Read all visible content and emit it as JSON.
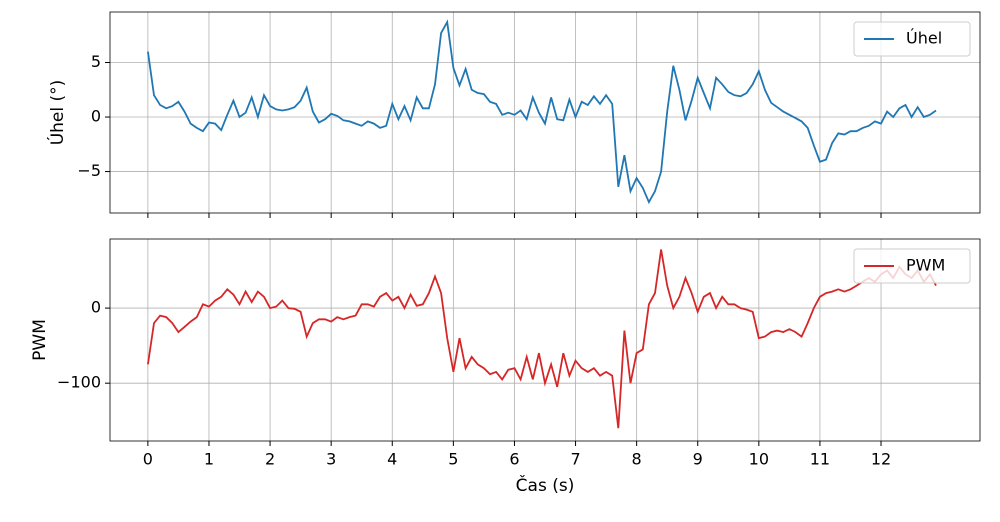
{
  "chart_data": [
    {
      "type": "line",
      "ylabel": "Úhel (°)",
      "x": [
        0,
        0.1,
        0.2,
        0.3,
        0.4,
        0.5,
        0.6,
        0.7,
        0.8,
        0.9,
        1,
        1.1,
        1.2,
        1.3,
        1.4,
        1.5,
        1.6,
        1.7,
        1.8,
        1.9,
        2,
        2.1,
        2.2,
        2.3,
        2.4,
        2.5,
        2.6,
        2.7,
        2.8,
        2.9,
        3,
        3.1,
        3.2,
        3.3,
        3.4,
        3.5,
        3.6,
        3.7,
        3.8,
        3.9,
        4,
        4.1,
        4.2,
        4.3,
        4.4,
        4.5,
        4.6,
        4.7,
        4.8,
        4.9,
        5,
        5.1,
        5.2,
        5.3,
        5.4,
        5.5,
        5.6,
        5.7,
        5.8,
        5.9,
        6,
        6.1,
        6.2,
        6.3,
        6.4,
        6.5,
        6.6,
        6.7,
        6.8,
        6.9,
        7,
        7.1,
        7.2,
        7.3,
        7.4,
        7.5,
        7.6,
        7.7,
        7.8,
        7.9,
        8,
        8.1,
        8.2,
        8.3,
        8.4,
        8.5,
        8.6,
        8.7,
        8.8,
        8.9,
        9,
        9.1,
        9.2,
        9.3,
        9.4,
        9.5,
        9.6,
        9.7,
        9.8,
        9.9,
        10,
        10.1,
        10.2,
        10.3,
        10.4,
        10.5,
        10.6,
        10.7,
        10.8,
        10.9,
        11,
        11.1,
        11.2,
        11.3,
        11.4,
        11.5,
        11.6,
        11.7,
        11.8,
        11.9,
        12,
        12.1,
        12.2,
        12.3,
        12.4,
        12.5,
        12.6,
        12.7,
        12.8,
        12.9
      ],
      "series": [
        {
          "name": "Úhel",
          "color": "#1f77b4",
          "values": [
            6.0,
            2.0,
            1.1,
            0.8,
            1.0,
            1.4,
            0.5,
            -0.6,
            -1.0,
            -1.3,
            -0.5,
            -0.6,
            -1.2,
            0.2,
            1.5,
            0,
            0.4,
            1.8,
            0,
            2.0,
            1.0,
            0.7,
            0.6,
            0.7,
            0.9,
            1.5,
            2.7,
            0.5,
            -0.5,
            -0.2,
            0.3,
            0.1,
            -0.3,
            -0.4,
            -0.6,
            -0.8,
            -0.4,
            -0.6,
            -1.0,
            -0.8,
            1.2,
            -0.2,
            1.0,
            -0.3,
            1.8,
            0.8,
            0.8,
            3.0,
            7.7,
            8.7,
            4.5,
            2.9,
            4.4,
            2.5,
            2.2,
            2.1,
            1.4,
            1.2,
            0.2,
            0.4,
            0.2,
            0.6,
            -0.2,
            1.8,
            0.4,
            -0.6,
            1.8,
            -0.2,
            -0.3,
            1.6,
            0,
            1.4,
            1.1,
            1.9,
            1.2,
            2.0,
            1.2,
            -6.4,
            -3.5,
            -6.8,
            -5.6,
            -6.5,
            -7.8,
            -6.8,
            -5.0,
            0.5,
            4.7,
            2.5,
            -0.3,
            1.5,
            3.6,
            2.2,
            0.8,
            3.6,
            3.0,
            2.3,
            2.0,
            1.9,
            2.2,
            3.0,
            4.2,
            2.5,
            1.3,
            0.9,
            0.5,
            0.2,
            -0.1,
            -0.4,
            -1.0,
            -2.6,
            -4.1,
            -3.9,
            -2.4,
            -1.5,
            -1.6,
            -1.3,
            -1.3,
            -1.0,
            -0.8,
            -0.4,
            -0.6,
            0.5,
            0,
            0.8,
            1.1,
            0,
            0.9,
            0,
            0.2,
            0.6
          ]
        }
      ],
      "xlim": [
        -0.62,
        13.62
      ],
      "ylim": [
        -8.8,
        9.63
      ],
      "xticks": [
        0,
        1,
        2,
        3,
        4,
        5,
        6,
        7,
        8,
        9,
        10,
        11,
        12
      ],
      "yticks": [
        {
          "value": -5,
          "label": "−5"
        },
        0,
        5
      ],
      "grid": true,
      "legend": "upper right"
    },
    {
      "type": "line",
      "ylabel": "PWM",
      "xlabel": "Čas (s)",
      "x": [
        0,
        0.1,
        0.2,
        0.3,
        0.4,
        0.5,
        0.6,
        0.7,
        0.8,
        0.9,
        1,
        1.1,
        1.2,
        1.3,
        1.4,
        1.5,
        1.6,
        1.7,
        1.8,
        1.9,
        2,
        2.1,
        2.2,
        2.3,
        2.4,
        2.5,
        2.6,
        2.7,
        2.8,
        2.9,
        3,
        3.1,
        3.2,
        3.3,
        3.4,
        3.5,
        3.6,
        3.7,
        3.8,
        3.9,
        4,
        4.1,
        4.2,
        4.3,
        4.4,
        4.5,
        4.6,
        4.7,
        4.8,
        4.9,
        5,
        5.1,
        5.2,
        5.3,
        5.4,
        5.5,
        5.6,
        5.7,
        5.8,
        5.9,
        6,
        6.1,
        6.2,
        6.3,
        6.4,
        6.5,
        6.6,
        6.7,
        6.8,
        6.9,
        7,
        7.1,
        7.2,
        7.3,
        7.4,
        7.5,
        7.6,
        7.7,
        7.8,
        7.9,
        8,
        8.1,
        8.2,
        8.3,
        8.4,
        8.5,
        8.6,
        8.7,
        8.8,
        8.9,
        9,
        9.1,
        9.2,
        9.3,
        9.4,
        9.5,
        9.6,
        9.7,
        9.8,
        9.9,
        10,
        10.1,
        10.2,
        10.3,
        10.4,
        10.5,
        10.6,
        10.7,
        10.8,
        10.9,
        11,
        11.1,
        11.2,
        11.3,
        11.4,
        11.5,
        11.6,
        11.7,
        11.8,
        11.9,
        12,
        12.1,
        12.2,
        12.3,
        12.4,
        12.5,
        12.6,
        12.7,
        12.8,
        12.9
      ],
      "series": [
        {
          "name": "PWM",
          "color": "#d62728",
          "values": [
            -75,
            -20,
            -10,
            -12,
            -20,
            -32,
            -25,
            -18,
            -12,
            5,
            2,
            10,
            15,
            25,
            18,
            5,
            22,
            8,
            22,
            15,
            0,
            2,
            10,
            0,
            -1,
            -5,
            -38,
            -20,
            -15,
            -15,
            -18,
            -12,
            -15,
            -12,
            -10,
            5,
            5,
            2,
            15,
            20,
            10,
            15,
            0,
            18,
            3,
            5,
            20,
            42,
            20,
            -40,
            -85,
            -40,
            -80,
            -65,
            -75,
            -80,
            -88,
            -85,
            -95,
            -82,
            -80,
            -95,
            -65,
            -95,
            -60,
            -100,
            -75,
            -105,
            -60,
            -90,
            -70,
            -80,
            -85,
            -80,
            -90,
            -85,
            -90,
            -160,
            -30,
            -100,
            -60,
            -55,
            5,
            20,
            78,
            30,
            0,
            15,
            40,
            20,
            -5,
            15,
            20,
            0,
            15,
            5,
            5,
            0,
            -2,
            -5,
            -40,
            -38,
            -32,
            -30,
            -32,
            -28,
            -32,
            -38,
            -20,
            0,
            15,
            20,
            22,
            25,
            22,
            25,
            30,
            35,
            40,
            35,
            45,
            50,
            40,
            55,
            45,
            40,
            50,
            35,
            45,
            30
          ]
        }
      ],
      "xlim": [
        -0.62,
        13.62
      ],
      "ylim": [
        -177,
        92
      ],
      "xticks": [
        0,
        1,
        2,
        3,
        4,
        5,
        6,
        7,
        8,
        9,
        10,
        11,
        12
      ],
      "yticks": [
        {
          "value": -100,
          "label": "−100"
        },
        0
      ],
      "grid": true,
      "legend": "upper right"
    }
  ]
}
